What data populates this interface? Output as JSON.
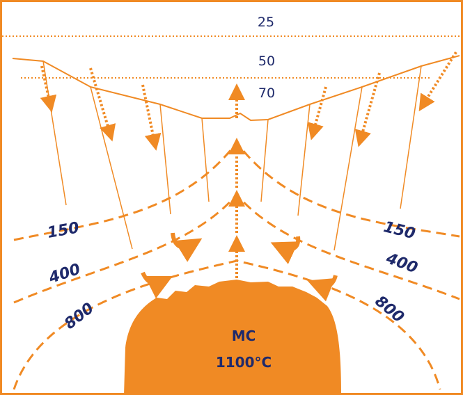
{
  "depth_labels": [
    "25",
    "50",
    "70"
  ],
  "isotherms": {
    "left": [
      "150",
      "400",
      "800"
    ],
    "right": [
      "150",
      "400",
      "800"
    ]
  },
  "magma_chamber": {
    "label": "MC",
    "temperature": "1100°C"
  }
}
